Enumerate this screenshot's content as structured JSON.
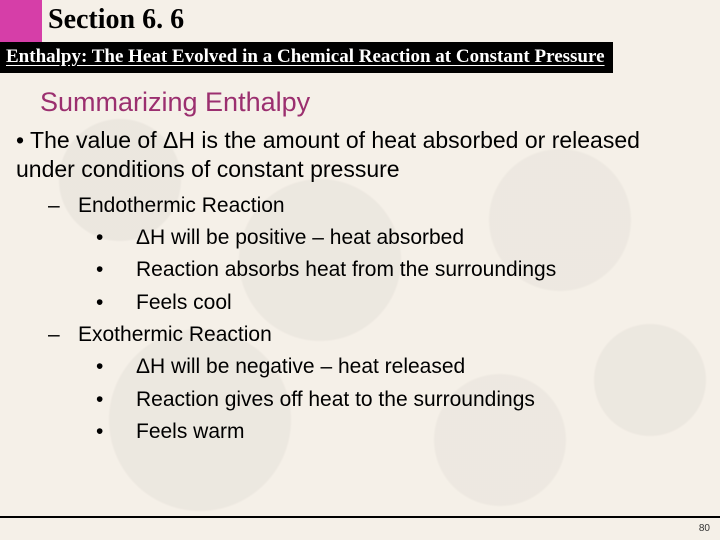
{
  "header": {
    "section_label": "Section 6. 6",
    "subtitle": "Enthalpy: The Heat Evolved in a Chemical Reaction at Constant Pressure"
  },
  "heading": "Summarizing Enthalpy",
  "main_point_prefix": "• The value of ",
  "delta": "Δ",
  "main_point_mid": "H is the amount of heat absorbed or released under conditions of constant pressure",
  "endo": {
    "label": "Endothermic Reaction",
    "b1_prefix": "ΔH will be positive – heat absorbed",
    "b2": "Reaction absorbs heat from the surroundings",
    "b3": "Feels cool"
  },
  "exo": {
    "label": "Exothermic Reaction",
    "b1_prefix": "ΔH will be negative – heat released",
    "b2": "Reaction gives off heat to the surroundings",
    "b3": "Feels warm"
  },
  "page": "80",
  "colors": {
    "pink": "#d63ea8",
    "heading": "#9b2f6f",
    "bg": "#f5f0e8"
  }
}
